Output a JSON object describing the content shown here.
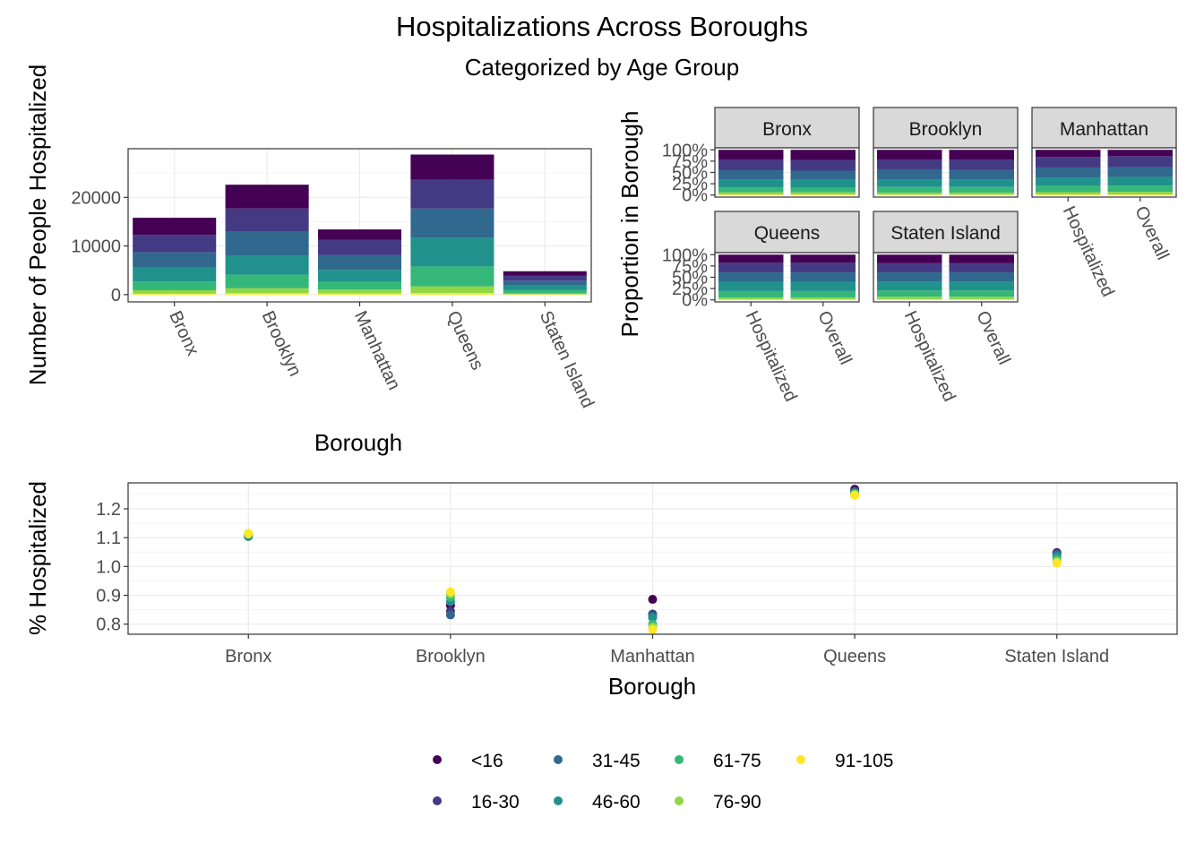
{
  "title": "Hospitalizations Across Boroughs",
  "subtitle": "Categorized by Age Group",
  "colors": {
    "<16": "#440154",
    "16-30": "#443983",
    "31-45": "#31688e",
    "46-60": "#21918c",
    "61-75": "#35b779",
    "76-90": "#90d743",
    "91-105": "#fde725"
  },
  "legend": {
    "items": [
      "<16",
      "16-30",
      "31-45",
      "46-60",
      "61-75",
      "76-90",
      "91-105"
    ]
  },
  "chart_data": [
    {
      "type": "bar",
      "stacked": true,
      "xlabel": "Borough",
      "ylabel": "Number of People Hospitalized",
      "ylim": [
        -1500,
        30000
      ],
      "yticks": [
        0,
        10000,
        20000
      ],
      "ytick_labels": [
        "0",
        "10000",
        "20000"
      ],
      "grid": true,
      "categories": [
        "Bronx",
        "Brooklyn",
        "Manhattan",
        "Queens",
        "Staten Island"
      ],
      "series": [
        {
          "name": "91-105",
          "values": [
            200,
            300,
            250,
            350,
            60
          ]
        },
        {
          "name": "76-90",
          "values": [
            700,
            1000,
            800,
            1350,
            200
          ]
        },
        {
          "name": "61-75",
          "values": [
            1800,
            2800,
            1550,
            4100,
            650
          ]
        },
        {
          "name": "46-60",
          "values": [
            2900,
            3900,
            2500,
            5900,
            950
          ]
        },
        {
          "name": "31-45",
          "values": [
            3100,
            4900,
            3000,
            6000,
            1000
          ]
        },
        {
          "name": "16-30",
          "values": [
            3600,
            4800,
            3200,
            5900,
            1000
          ]
        },
        {
          "name": "<16",
          "values": [
            3500,
            4900,
            2100,
            5200,
            940
          ]
        }
      ]
    },
    {
      "type": "bar",
      "stacked": true,
      "faceted": true,
      "ylabel": "Proportion in Borough",
      "ylim": [
        0,
        1
      ],
      "yticks": [
        0,
        0.25,
        0.5,
        0.75,
        1
      ],
      "ytick_labels": [
        "0%",
        "25%",
        "50%",
        "75%",
        "100%"
      ],
      "categories": [
        "Hospitalized",
        "Overall"
      ],
      "panels": [
        {
          "label": "Bronx",
          "hospitalized": [
            0.22,
            0.23,
            0.2,
            0.18,
            0.11,
            0.045,
            0.015
          ],
          "overall": [
            0.23,
            0.23,
            0.2,
            0.18,
            0.1,
            0.045,
            0.015
          ]
        },
        {
          "label": "Brooklyn",
          "hospitalized": [
            0.22,
            0.21,
            0.22,
            0.17,
            0.125,
            0.045,
            0.01
          ],
          "overall": [
            0.22,
            0.22,
            0.21,
            0.17,
            0.125,
            0.045,
            0.01
          ]
        },
        {
          "label": "Manhattan",
          "hospitalized": [
            0.155,
            0.235,
            0.22,
            0.185,
            0.14,
            0.05,
            0.015
          ],
          "overall": [
            0.14,
            0.24,
            0.22,
            0.19,
            0.14,
            0.055,
            0.015
          ]
        },
        {
          "label": "Queens",
          "hospitalized": [
            0.18,
            0.21,
            0.21,
            0.205,
            0.14,
            0.045,
            0.01
          ],
          "overall": [
            0.18,
            0.21,
            0.21,
            0.205,
            0.14,
            0.045,
            0.01
          ]
        },
        {
          "label": "Staten Island",
          "hospitalized": [
            0.19,
            0.2,
            0.2,
            0.2,
            0.14,
            0.055,
            0.015
          ],
          "overall": [
            0.19,
            0.2,
            0.2,
            0.2,
            0.14,
            0.055,
            0.015
          ]
        }
      ],
      "stack_order": [
        "<16",
        "16-30",
        "31-45",
        "46-60",
        "61-75",
        "76-90",
        "91-105"
      ]
    },
    {
      "type": "scatter",
      "xlabel": "Borough",
      "ylabel": "% Hospitalized",
      "ylim": [
        0.765,
        1.29
      ],
      "yticks": [
        0.8,
        0.9,
        1.0,
        1.1,
        1.2
      ],
      "ytick_labels": [
        "0.8",
        "0.9",
        "1.0",
        "1.1",
        "1.2"
      ],
      "grid": true,
      "categories": [
        "Bronx",
        "Brooklyn",
        "Manhattan",
        "Queens",
        "Staten Island"
      ],
      "series": [
        {
          "name": "<16",
          "values": [
            1.105,
            0.865,
            0.886,
            1.268,
            1.048
          ]
        },
        {
          "name": "16-30",
          "values": [
            1.107,
            0.845,
            0.835,
            1.262,
            1.045
          ]
        },
        {
          "name": "31-45",
          "values": [
            1.104,
            0.832,
            0.828,
            1.258,
            1.043
          ]
        },
        {
          "name": "46-60",
          "values": [
            1.107,
            0.878,
            0.822,
            1.255,
            1.035
          ]
        },
        {
          "name": "61-75",
          "values": [
            1.11,
            0.893,
            0.8,
            1.252,
            1.025
          ]
        },
        {
          "name": "76-90",
          "values": [
            1.112,
            0.905,
            0.79,
            1.25,
            1.018
          ]
        },
        {
          "name": "91-105",
          "values": [
            1.115,
            0.912,
            0.782,
            1.247,
            1.012
          ]
        }
      ]
    }
  ]
}
